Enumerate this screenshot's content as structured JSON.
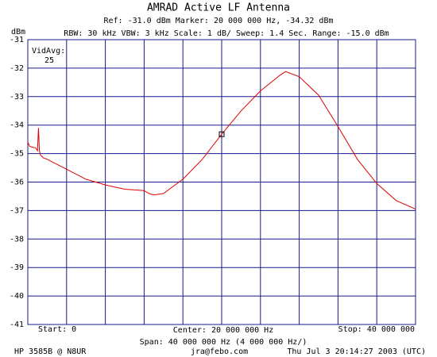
{
  "chart_data": {
    "type": "line",
    "title": "AMRAD Active LF Antenna",
    "ref_line": "Ref: -31.0 dBm   Marker: 20 000 000 Hz, -34.32 dBm",
    "settings_line": "RBW: 30 kHz  VBW: 3 kHz  Scale: 1 dB/  Sweep: 1.4 Sec.  Range: -15.0 dBm",
    "y_label": "dBm",
    "avg_label": "VidAvg:",
    "avg_value": "25",
    "start_label": "Start: 0",
    "center_label": "Center: 20 000 000 Hz",
    "stop_label": "Stop: 40 000 000",
    "span_label": "Span: 40 000 000 Hz (4 000 000 Hz/)",
    "footer_left": "HP 3585B @ N8UR",
    "footer_center": "jra@febo.com",
    "footer_right": "Thu Jul  3 20:14:27 2003 (UTC)",
    "color": "#e00000",
    "grid_color": "#1a1a8c",
    "x": [
      0,
      200000,
      800000,
      1000000,
      1100000,
      1200000,
      1300000,
      1600000,
      2000000,
      4000000,
      6000000,
      8000000,
      10000000,
      12000000,
      12500000,
      13000000,
      14000000,
      16000000,
      18000000,
      20000000,
      22000000,
      24000000,
      26000000,
      26600000,
      28000000,
      30000000,
      32000000,
      34000000,
      36000000,
      38000000,
      40000000
    ],
    "values": [
      -34.6,
      -34.75,
      -34.8,
      -34.9,
      -34.1,
      -34.9,
      -35.05,
      -35.15,
      -35.2,
      -35.55,
      -35.9,
      -36.1,
      -36.25,
      -36.3,
      -36.4,
      -36.45,
      -36.4,
      -35.9,
      -35.2,
      -34.32,
      -33.5,
      -32.8,
      -32.25,
      -32.12,
      -32.3,
      -32.95,
      -34.05,
      -35.2,
      -36.05,
      -36.65,
      -36.95
    ],
    "marker": {
      "x": 20000000,
      "value": -34.32
    },
    "xlim": [
      0,
      40000000
    ],
    "xticks": [
      0,
      4000000,
      8000000,
      12000000,
      16000000,
      20000000,
      24000000,
      28000000,
      32000000,
      36000000,
      40000000
    ],
    "ylim": [
      -41,
      -31
    ],
    "yticks": [
      -31,
      -32,
      -33,
      -34,
      -35,
      -36,
      -37,
      -38,
      -39,
      -40,
      -41
    ],
    "grid": true
  }
}
